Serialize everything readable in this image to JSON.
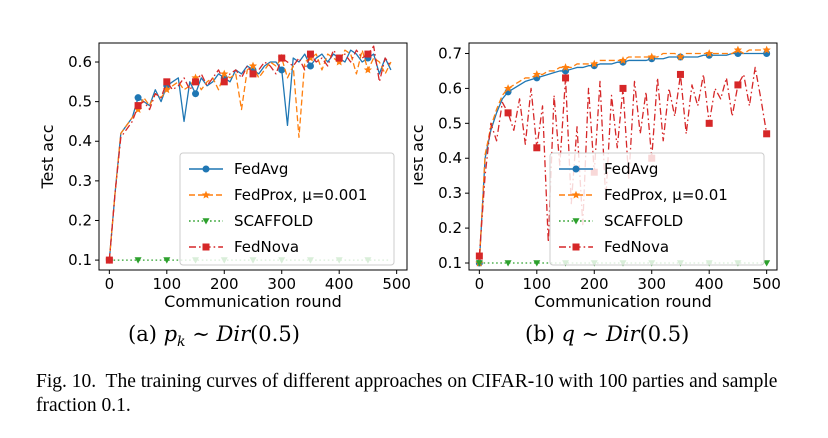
{
  "caption": {
    "label": "Fig. 10.",
    "text": "The training curves of different approaches on CIFAR-10 with 100 parties and sample fraction 0.1."
  },
  "subcaptions": [
    {
      "letter": "(a)",
      "var": "p",
      "sub": "k",
      "rel": "∼",
      "dist": "Dir",
      "arg": "(0.5)"
    },
    {
      "letter": "(b)",
      "var": "q",
      "sub": "",
      "rel": "∼",
      "dist": "Dir",
      "arg": "(0.5)"
    }
  ],
  "chart_data": [
    {
      "type": "line",
      "xlabel": "Communication round",
      "ylabel": "Test acc",
      "xlim": [
        -18,
        518
      ],
      "ylim": [
        0.075,
        0.648
      ],
      "xticks": [
        0,
        100,
        200,
        300,
        400,
        500
      ],
      "yticks": [
        0.1,
        0.2,
        0.3,
        0.4,
        0.5,
        0.6
      ],
      "grid": false,
      "legend_position": "lower-right",
      "series": [
        {
          "name": "FedAvg",
          "color": "#1f77b4",
          "linestyle": "solid",
          "marker": "circle",
          "x": [
            0,
            10,
            20,
            30,
            40,
            50,
            60,
            70,
            80,
            90,
            100,
            110,
            120,
            130,
            140,
            150,
            160,
            170,
            180,
            190,
            200,
            210,
            220,
            230,
            240,
            250,
            260,
            270,
            280,
            290,
            300,
            310,
            320,
            330,
            340,
            350,
            360,
            370,
            380,
            390,
            400,
            410,
            420,
            430,
            440,
            450,
            460,
            470,
            480,
            490
          ],
          "y": [
            0.1,
            0.27,
            0.42,
            0.44,
            0.46,
            0.51,
            0.5,
            0.49,
            0.53,
            0.5,
            0.54,
            0.55,
            0.56,
            0.45,
            0.55,
            0.52,
            0.56,
            0.54,
            0.55,
            0.57,
            0.56,
            0.55,
            0.58,
            0.57,
            0.59,
            0.58,
            0.57,
            0.59,
            0.6,
            0.6,
            0.58,
            0.44,
            0.61,
            0.6,
            0.62,
            0.59,
            0.61,
            0.62,
            0.6,
            0.62,
            0.61,
            0.6,
            0.63,
            0.62,
            0.6,
            0.61,
            0.62,
            0.57,
            0.61,
            0.58
          ]
        },
        {
          "name": "FedProx, μ=0.001",
          "color": "#ff7f0e",
          "linestyle": "dashed",
          "marker": "star",
          "x": [
            0,
            10,
            20,
            30,
            40,
            50,
            60,
            70,
            80,
            90,
            100,
            110,
            120,
            130,
            140,
            150,
            160,
            170,
            180,
            190,
            200,
            210,
            220,
            230,
            240,
            250,
            260,
            270,
            280,
            290,
            300,
            310,
            320,
            330,
            340,
            350,
            360,
            370,
            380,
            390,
            400,
            410,
            420,
            430,
            440,
            450,
            460,
            470,
            480,
            490
          ],
          "y": [
            0.1,
            0.27,
            0.42,
            0.44,
            0.46,
            0.48,
            0.51,
            0.49,
            0.52,
            0.51,
            0.53,
            0.54,
            0.55,
            0.53,
            0.54,
            0.56,
            0.53,
            0.55,
            0.56,
            0.53,
            0.57,
            0.56,
            0.57,
            0.48,
            0.58,
            0.59,
            0.56,
            0.58,
            0.6,
            0.59,
            0.61,
            0.56,
            0.59,
            0.41,
            0.6,
            0.61,
            0.62,
            0.58,
            0.62,
            0.61,
            0.6,
            0.63,
            0.62,
            0.57,
            0.63,
            0.58,
            0.61,
            0.6,
            0.57,
            0.6
          ]
        },
        {
          "name": "SCAFFOLD",
          "color": "#2ca02c",
          "linestyle": "dotted",
          "marker": "triangle-down",
          "x": [
            0,
            10,
            20,
            30,
            40,
            50,
            60,
            70,
            80,
            90,
            100,
            110,
            120,
            130,
            140,
            150,
            160,
            170,
            180,
            190,
            200,
            210,
            220,
            230,
            240,
            250,
            260,
            270,
            280,
            290,
            300,
            310,
            320,
            330,
            340,
            350,
            360,
            370,
            380,
            390,
            400,
            410,
            420,
            430,
            440,
            450,
            460,
            470,
            480,
            490
          ],
          "y": [
            0.1,
            0.1,
            0.1,
            0.1,
            0.1,
            0.1,
            0.1,
            0.1,
            0.1,
            0.1,
            0.1,
            0.1,
            0.1,
            0.1,
            0.1,
            0.1,
            0.1,
            0.1,
            0.1,
            0.1,
            0.1,
            0.1,
            0.1,
            0.1,
            0.1,
            0.1,
            0.1,
            0.1,
            0.1,
            0.1,
            0.1,
            0.1,
            0.1,
            0.1,
            0.1,
            0.1,
            0.1,
            0.1,
            0.1,
            0.1,
            0.1,
            0.1,
            0.1,
            0.1,
            0.1,
            0.1,
            0.1,
            0.1,
            0.1,
            0.1
          ]
        },
        {
          "name": "FedNova",
          "color": "#d62728",
          "linestyle": "dashdot",
          "marker": "square",
          "x": [
            0,
            10,
            20,
            30,
            40,
            50,
            60,
            70,
            80,
            90,
            100,
            110,
            120,
            130,
            140,
            150,
            160,
            170,
            180,
            190,
            200,
            210,
            220,
            230,
            240,
            250,
            260,
            270,
            280,
            290,
            300,
            310,
            320,
            330,
            340,
            350,
            360,
            370,
            380,
            390,
            400,
            410,
            420,
            430,
            440,
            450,
            460,
            470,
            480,
            490
          ],
          "y": [
            0.1,
            0.27,
            0.41,
            0.43,
            0.45,
            0.49,
            0.5,
            0.48,
            0.52,
            0.51,
            0.55,
            0.53,
            0.54,
            0.56,
            0.53,
            0.55,
            0.57,
            0.54,
            0.56,
            0.58,
            0.55,
            0.57,
            0.58,
            0.56,
            0.59,
            0.57,
            0.58,
            0.6,
            0.59,
            0.57,
            0.61,
            0.6,
            0.59,
            0.61,
            0.58,
            0.62,
            0.6,
            0.61,
            0.59,
            0.63,
            0.61,
            0.62,
            0.6,
            0.63,
            0.61,
            0.62,
            0.64,
            0.55,
            0.61,
            0.59
          ]
        }
      ]
    },
    {
      "type": "line",
      "xlabel": "Communication round",
      "ylabel": "Test acc",
      "xlim": [
        -18,
        518
      ],
      "ylim": [
        0.08,
        0.73
      ],
      "xticks": [
        0,
        100,
        200,
        300,
        400,
        500
      ],
      "yticks": [
        0.1,
        0.2,
        0.3,
        0.4,
        0.5,
        0.6,
        0.7
      ],
      "grid": false,
      "legend_position": "lower-right",
      "series": [
        {
          "name": "FedAvg",
          "color": "#1f77b4",
          "linestyle": "solid",
          "marker": "circle",
          "x": [
            0,
            10,
            20,
            30,
            40,
            50,
            60,
            70,
            80,
            90,
            100,
            110,
            120,
            130,
            140,
            150,
            160,
            170,
            180,
            190,
            200,
            210,
            220,
            230,
            240,
            250,
            260,
            270,
            280,
            290,
            300,
            310,
            320,
            330,
            340,
            350,
            360,
            370,
            380,
            390,
            400,
            410,
            420,
            430,
            440,
            450,
            460,
            470,
            480,
            490,
            500
          ],
          "y": [
            0.1,
            0.4,
            0.48,
            0.53,
            0.57,
            0.59,
            0.6,
            0.61,
            0.62,
            0.625,
            0.63,
            0.635,
            0.64,
            0.645,
            0.65,
            0.65,
            0.655,
            0.66,
            0.66,
            0.665,
            0.665,
            0.67,
            0.67,
            0.67,
            0.675,
            0.675,
            0.68,
            0.68,
            0.68,
            0.68,
            0.685,
            0.685,
            0.685,
            0.69,
            0.69,
            0.69,
            0.69,
            0.69,
            0.69,
            0.695,
            0.695,
            0.695,
            0.695,
            0.695,
            0.7,
            0.7,
            0.7,
            0.7,
            0.7,
            0.7,
            0.7
          ]
        },
        {
          "name": "FedProx, μ=0.01",
          "color": "#ff7f0e",
          "linestyle": "dashed",
          "marker": "star",
          "x": [
            0,
            10,
            20,
            30,
            40,
            50,
            60,
            70,
            80,
            90,
            100,
            110,
            120,
            130,
            140,
            150,
            160,
            170,
            180,
            190,
            200,
            210,
            220,
            230,
            240,
            250,
            260,
            270,
            280,
            290,
            300,
            310,
            320,
            330,
            340,
            350,
            360,
            370,
            380,
            390,
            400,
            410,
            420,
            430,
            440,
            450,
            460,
            470,
            480,
            490,
            500
          ],
          "y": [
            0.1,
            0.41,
            0.49,
            0.54,
            0.58,
            0.6,
            0.61,
            0.62,
            0.63,
            0.63,
            0.64,
            0.64,
            0.65,
            0.65,
            0.66,
            0.66,
            0.66,
            0.67,
            0.67,
            0.67,
            0.67,
            0.68,
            0.68,
            0.68,
            0.68,
            0.68,
            0.69,
            0.69,
            0.69,
            0.69,
            0.69,
            0.69,
            0.7,
            0.7,
            0.7,
            0.69,
            0.7,
            0.7,
            0.7,
            0.7,
            0.7,
            0.7,
            0.7,
            0.7,
            0.7,
            0.71,
            0.7,
            0.71,
            0.71,
            0.71,
            0.71
          ]
        },
        {
          "name": "SCAFFOLD",
          "color": "#2ca02c",
          "linestyle": "dotted",
          "marker": "triangle-down",
          "x": [
            0,
            10,
            20,
            30,
            40,
            50,
            60,
            70,
            80,
            90,
            100,
            110,
            120,
            130,
            140,
            150,
            160,
            170,
            180,
            190,
            200,
            210,
            220,
            230,
            240,
            250,
            260,
            270,
            280,
            290,
            300,
            310,
            320,
            330,
            340,
            350,
            360,
            370,
            380,
            390,
            400,
            410,
            420,
            430,
            440,
            450,
            460,
            470,
            480,
            490,
            500
          ],
          "y": [
            0.1,
            0.1,
            0.1,
            0.1,
            0.1,
            0.1,
            0.1,
            0.1,
            0.1,
            0.1,
            0.1,
            0.1,
            0.1,
            0.1,
            0.1,
            0.1,
            0.1,
            0.1,
            0.1,
            0.1,
            0.1,
            0.1,
            0.1,
            0.1,
            0.1,
            0.1,
            0.1,
            0.1,
            0.1,
            0.1,
            0.1,
            0.1,
            0.1,
            0.1,
            0.1,
            0.1,
            0.1,
            0.1,
            0.1,
            0.1,
            0.1,
            0.1,
            0.1,
            0.1,
            0.1,
            0.1,
            0.1,
            0.1,
            0.1,
            0.1,
            0.1
          ]
        },
        {
          "name": "FedNova",
          "color": "#d62728",
          "linestyle": "dashdot",
          "marker": "square",
          "x": [
            0,
            10,
            20,
            30,
            40,
            50,
            60,
            70,
            80,
            90,
            100,
            110,
            120,
            130,
            140,
            150,
            160,
            170,
            180,
            190,
            200,
            210,
            220,
            230,
            240,
            250,
            260,
            270,
            280,
            290,
            300,
            310,
            320,
            330,
            340,
            350,
            360,
            370,
            380,
            390,
            400,
            410,
            420,
            430,
            440,
            450,
            460,
            470,
            480,
            490,
            500
          ],
          "y": [
            0.12,
            0.35,
            0.5,
            0.45,
            0.56,
            0.53,
            0.48,
            0.57,
            0.44,
            0.6,
            0.43,
            0.55,
            0.16,
            0.58,
            0.38,
            0.63,
            0.27,
            0.49,
            0.21,
            0.6,
            0.36,
            0.62,
            0.28,
            0.58,
            0.43,
            0.6,
            0.34,
            0.62,
            0.47,
            0.59,
            0.4,
            0.63,
            0.45,
            0.6,
            0.52,
            0.64,
            0.47,
            0.61,
            0.55,
            0.64,
            0.5,
            0.6,
            0.57,
            0.63,
            0.52,
            0.61,
            0.64,
            0.55,
            0.66,
            0.57,
            0.47
          ]
        }
      ]
    }
  ]
}
